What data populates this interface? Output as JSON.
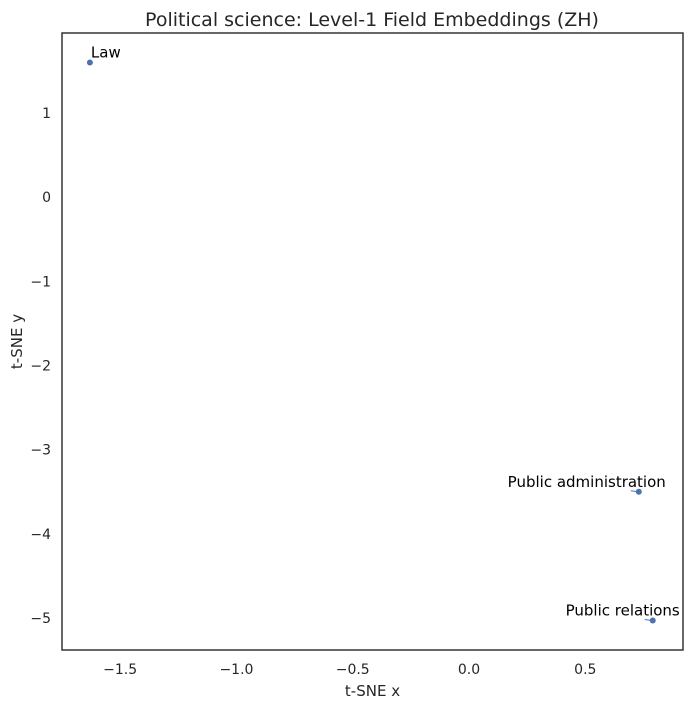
{
  "chart_data": {
    "type": "scatter",
    "title": "Political science: Level-1 Field Embeddings (ZH)",
    "xlabel": "t-SNE x",
    "ylabel": "t-SNE y",
    "xlim": [
      -1.75,
      0.92
    ],
    "ylim": [
      -5.38,
      1.95
    ],
    "xticks": [
      -1.5,
      -1.0,
      -0.5,
      0.0,
      0.5
    ],
    "xtick_labels": [
      "−1.5",
      "−1.0",
      "−0.5",
      "0.0",
      "0.5"
    ],
    "yticks": [
      1,
      0,
      -1,
      -2,
      -3,
      -4,
      -5
    ],
    "ytick_labels": [
      "1",
      "0",
      "−1",
      "−2",
      "−3",
      "−4",
      "−5"
    ],
    "grid": false,
    "points": [
      {
        "label": "Law",
        "x": -1.63,
        "y": 1.6
      },
      {
        "label": "Public administration",
        "x": 0.73,
        "y": -3.5
      },
      {
        "label": "Public relations",
        "x": 0.79,
        "y": -5.03
      }
    ],
    "point_color": "#4c72b0"
  }
}
